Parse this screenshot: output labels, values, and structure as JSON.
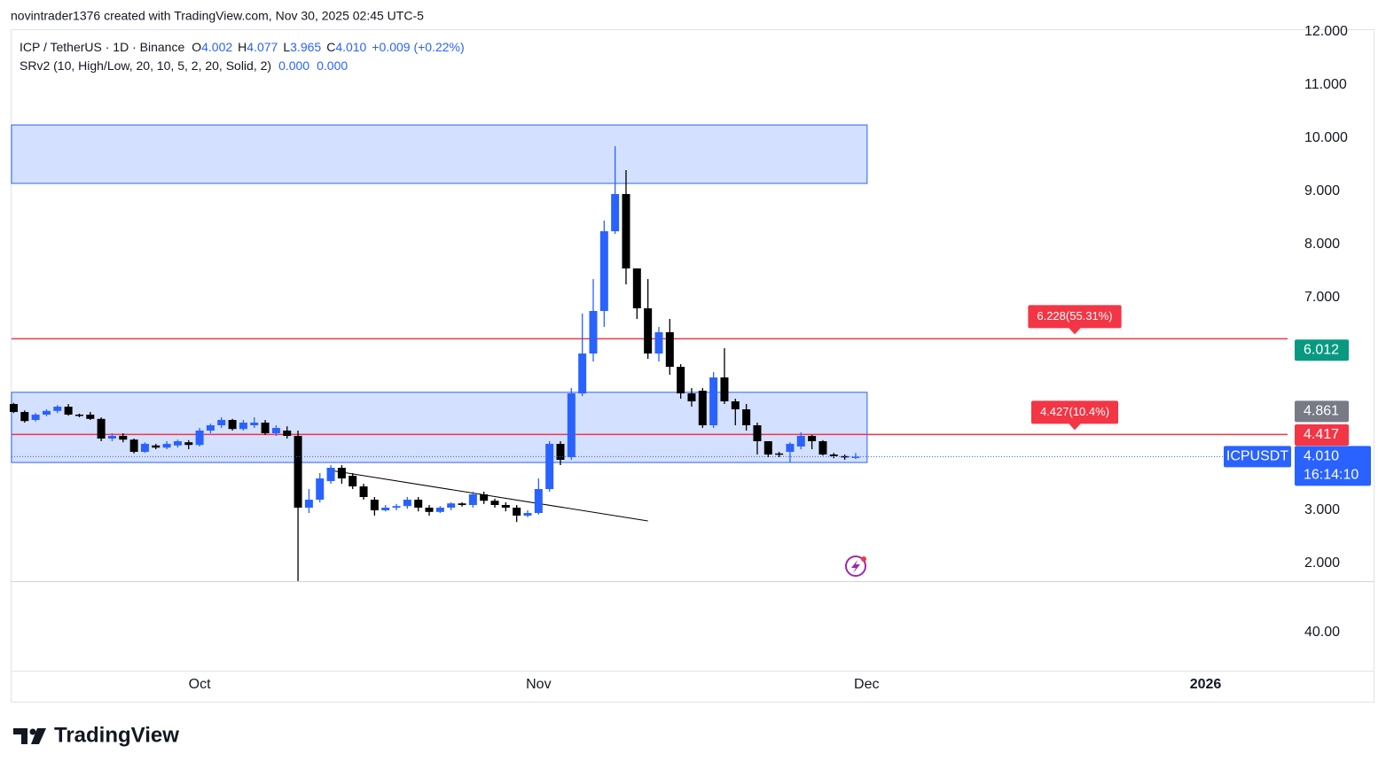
{
  "header": {
    "title": "novintrader1376 created with TradingView.com, Nov 30, 2025 02:45 UTC-5",
    "symbol": "ICP / TetherUS · 1D · Binance",
    "ohlc": [
      {
        "key": "O",
        "value": "4.002"
      },
      {
        "key": "H",
        "value": "4.077"
      },
      {
        "key": "L",
        "value": "3.965"
      },
      {
        "key": "C",
        "value": "4.010"
      }
    ],
    "change": "+0.009 (+0.22%)",
    "indicator": "SRv2 (10, High/Low, 20, 10, 5, 2, 20, Solid, 2)",
    "indicator_values": [
      "0.000",
      "0.000"
    ]
  },
  "chart_data": {
    "type": "candlestick",
    "up_color": "#2962ff",
    "down_color": "#000000",
    "open": [
      5.0,
      4.85,
      4.7,
      4.8,
      4.87,
      4.95,
      4.8,
      4.8,
      4.72,
      4.35,
      4.4,
      4.33,
      4.1,
      4.22,
      4.18,
      4.22,
      4.28,
      4.23,
      4.5,
      4.6,
      4.7,
      4.53,
      4.6,
      4.65,
      4.45,
      4.5,
      4.4,
      3.05,
      3.2,
      3.55,
      3.8,
      3.65,
      3.45,
      3.2,
      3.0,
      3.05,
      3.08,
      3.2,
      3.05,
      2.97,
      3.05,
      3.13,
      3.1,
      3.3,
      3.18,
      3.1,
      3.05,
      2.9,
      2.95,
      3.4,
      4.25,
      4.0,
      5.2,
      5.95,
      6.75,
      8.25,
      8.95,
      7.55,
      6.8,
      5.95,
      6.35,
      5.7,
      5.2,
      5.25,
      4.6,
      5.5,
      5.05,
      4.9,
      4.6,
      4.3,
      4.07,
      4.1,
      4.2,
      4.4,
      4.3,
      4.05,
      4.02,
      4.002
    ],
    "high": [
      5.02,
      4.88,
      4.83,
      4.9,
      4.98,
      5.0,
      4.82,
      4.85,
      4.75,
      4.45,
      4.45,
      4.35,
      4.28,
      4.25,
      4.3,
      4.33,
      4.32,
      4.55,
      4.63,
      4.75,
      4.72,
      4.7,
      4.75,
      4.7,
      4.6,
      4.58,
      4.5,
      3.4,
      3.7,
      3.85,
      3.85,
      3.7,
      3.5,
      3.25,
      3.1,
      3.12,
      3.25,
      3.25,
      3.1,
      3.08,
      3.15,
      3.15,
      3.35,
      3.35,
      3.22,
      3.15,
      3.1,
      3.0,
      3.6,
      4.3,
      4.3,
      5.3,
      6.7,
      7.35,
      8.45,
      9.85,
      9.4,
      7.55,
      7.35,
      6.45,
      6.6,
      5.75,
      5.3,
      5.3,
      5.6,
      6.05,
      5.1,
      5.0,
      4.65,
      4.3,
      4.1,
      4.28,
      4.47,
      4.42,
      4.32,
      4.08,
      4.05,
      4.077
    ],
    "low": [
      4.83,
      4.65,
      4.67,
      4.77,
      4.83,
      4.78,
      4.75,
      4.7,
      4.3,
      4.3,
      4.28,
      4.07,
      4.08,
      4.15,
      4.15,
      4.18,
      4.15,
      4.2,
      4.45,
      4.55,
      4.5,
      4.5,
      4.55,
      4.42,
      4.4,
      4.35,
      1.67,
      2.95,
      3.15,
      3.5,
      3.5,
      3.4,
      3.2,
      2.9,
      2.98,
      3.0,
      3.03,
      2.98,
      2.9,
      2.95,
      3.0,
      3.07,
      3.05,
      3.12,
      3.05,
      2.98,
      2.78,
      2.87,
      2.92,
      3.35,
      3.85,
      3.95,
      5.15,
      5.8,
      6.45,
      8.2,
      7.25,
      6.6,
      5.85,
      5.8,
      5.55,
      5.1,
      4.95,
      4.55,
      4.55,
      5.0,
      4.6,
      4.5,
      4.05,
      4.0,
      4.0,
      3.9,
      4.15,
      4.15,
      4.03,
      3.98,
      3.95,
      3.965
    ],
    "close": [
      4.85,
      4.68,
      4.8,
      4.87,
      4.95,
      4.8,
      4.78,
      4.72,
      4.35,
      4.4,
      4.33,
      4.1,
      4.25,
      4.18,
      4.25,
      4.3,
      4.23,
      4.5,
      4.6,
      4.7,
      4.53,
      4.65,
      4.65,
      4.45,
      4.55,
      4.4,
      3.05,
      3.2,
      3.6,
      3.8,
      3.6,
      3.45,
      3.25,
      3.0,
      3.05,
      3.08,
      3.2,
      3.05,
      2.97,
      3.05,
      3.13,
      3.1,
      3.3,
      3.18,
      3.1,
      3.05,
      2.9,
      2.95,
      3.4,
      4.25,
      3.95,
      5.2,
      5.95,
      6.75,
      8.25,
      8.95,
      7.55,
      6.8,
      5.95,
      6.35,
      5.7,
      5.2,
      5.05,
      4.6,
      5.5,
      5.05,
      4.9,
      4.6,
      4.3,
      4.05,
      4.05,
      4.25,
      4.4,
      4.3,
      4.05,
      4.02,
      4.0,
      4.01
    ],
    "xlim": [
      -0.2,
      116.5
    ],
    "xticks": [
      {
        "value": 17,
        "label": "Oct"
      },
      {
        "value": 48,
        "label": "Nov"
      },
      {
        "value": 78,
        "label": "Dec"
      },
      {
        "value": 109,
        "label": "2026"
      }
    ],
    "ylim": [
      1.667,
      12.017
    ],
    "yticks": [
      {
        "value": 2,
        "label": "2.000"
      },
      {
        "value": 3,
        "label": "3.000"
      },
      {
        "value": 7,
        "label": "7.000"
      },
      {
        "value": 8,
        "label": "8.000"
      },
      {
        "value": 9,
        "label": "9.000"
      },
      {
        "value": 10,
        "label": "10.000"
      },
      {
        "value": 11,
        "label": "11.000"
      },
      {
        "value": 12,
        "label": "12.000"
      }
    ],
    "zones": [
      {
        "x_range": [
          -0.2,
          78.05
        ],
        "y_range": [
          9.15,
          10.25
        ],
        "color": "#2962ff"
      },
      {
        "x_range": [
          -0.2,
          78.05
        ],
        "y_range": [
          3.9,
          5.22
        ],
        "color": "#2962ff"
      }
    ],
    "trendline": {
      "x": [
        29,
        58
      ],
      "y": [
        3.75,
        2.8
      ],
      "color": "#000000"
    },
    "hlines": [
      {
        "value": 6.228,
        "label": "6.228(55.31%)",
        "color": "#f23645"
      },
      {
        "value": 4.427,
        "label": "4.427(10.4%)",
        "color": "#f23645"
      }
    ],
    "price_badges": [
      {
        "value": 6.012,
        "label": "6.012",
        "color": "#089981"
      },
      {
        "value": 4.861,
        "label": "4.861",
        "color": "#787b86"
      },
      {
        "value": 4.417,
        "label": "4.417",
        "color": "#f23645"
      },
      {
        "value": 4.01,
        "label": "4.010",
        "color": "#2962ff",
        "symbol": "ICPUSDT",
        "countdown": "16:14:10"
      }
    ],
    "lower_pane_label": "40.00"
  },
  "footer": {
    "logo": "TradingView"
  }
}
